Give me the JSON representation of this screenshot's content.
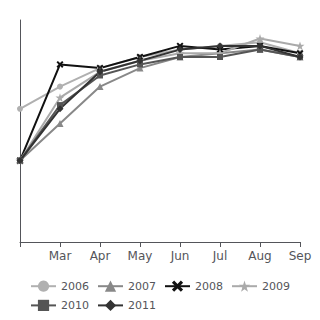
{
  "chart_data": {
    "type": "line",
    "categories": [
      null,
      "Mar",
      "Apr",
      "May",
      "Jun",
      "Jul",
      "Aug",
      "Sep"
    ],
    "series": [
      {
        "name": "2006",
        "color": "#b0b0b0",
        "marker": "circle",
        "values": [
          16,
          22,
          27,
          30,
          32,
          33,
          34,
          31
        ]
      },
      {
        "name": "2007",
        "color": "#888888",
        "marker": "triangle",
        "values": [
          2,
          12,
          22,
          27,
          30,
          31,
          32,
          30
        ]
      },
      {
        "name": "2008",
        "color": "#111111",
        "marker": "x",
        "values": [
          2,
          28,
          27,
          30,
          33,
          32,
          33,
          31
        ]
      },
      {
        "name": "2009",
        "color": "#aaaaaa",
        "marker": "star",
        "values": [
          2,
          19,
          26,
          29,
          31,
          31,
          35,
          33
        ]
      },
      {
        "name": "2010",
        "color": "#555555",
        "marker": "square",
        "values": [
          2,
          17,
          25,
          28,
          30,
          30,
          32,
          30
        ]
      },
      {
        "name": "2011",
        "color": "#333333",
        "marker": "diamond",
        "values": [
          2,
          16,
          26,
          29,
          32,
          33,
          33,
          30
        ]
      }
    ],
    "ylim": [
      -20,
      40
    ],
    "grid": false,
    "legend": "bottom",
    "tick_labels": "x"
  }
}
